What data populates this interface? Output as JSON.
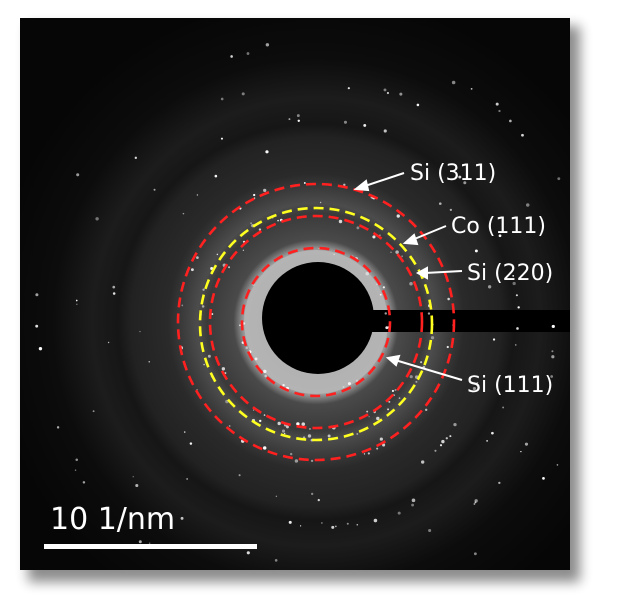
{
  "figure": {
    "ring_labels": [
      {
        "text": "Si (311)",
        "color": "#ff2020"
      },
      {
        "text": "Co (111)",
        "color": "#ffff20"
      },
      {
        "text": "Si (220)",
        "color": "#ff2020"
      },
      {
        "text": "Si (111)",
        "color": "#ff2020"
      }
    ],
    "scale_bar": {
      "label": "10 1/nm"
    }
  }
}
